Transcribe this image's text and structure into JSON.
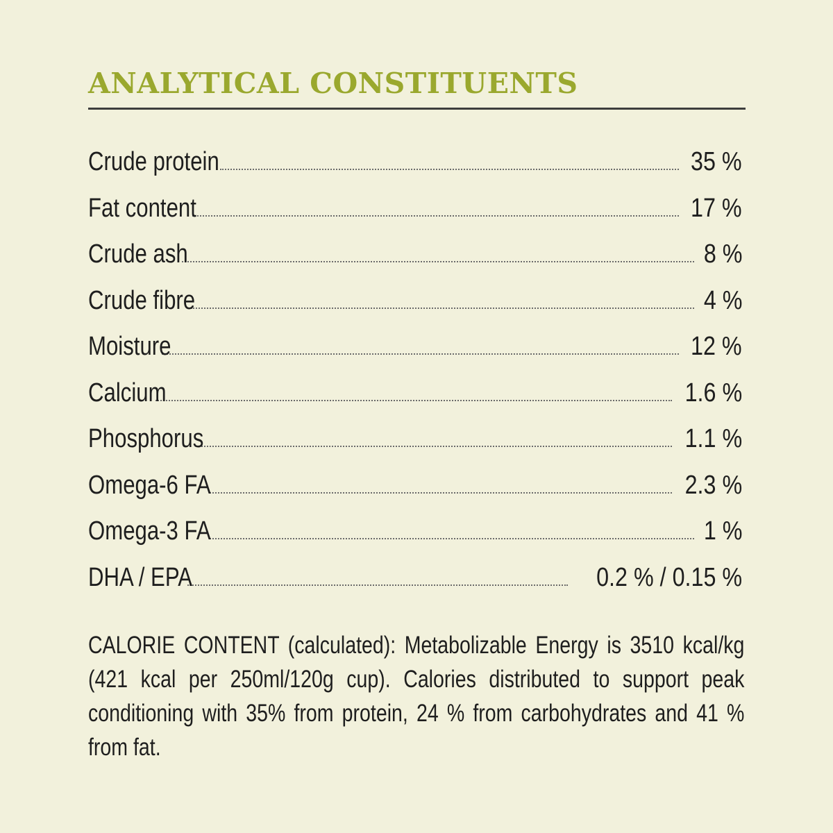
{
  "title": "ANALYTICAL CONSTITUENTS",
  "colors": {
    "title": "#9aa82e",
    "background": "#f2f1dc",
    "text": "#1e1e1e",
    "rule": "#3d3d3d"
  },
  "constituents": [
    {
      "label": "Crude protein",
      "value": "35 %"
    },
    {
      "label": "Fat content",
      "value": "17 %"
    },
    {
      "label": "Crude ash",
      "value": "8 %"
    },
    {
      "label": "Crude fibre",
      "value": "4 %"
    },
    {
      "label": "Moisture",
      "value": "12 %"
    },
    {
      "label": "Calcium",
      "value": "1.6 %"
    },
    {
      "label": "Phosphorus",
      "value": "1.1 %"
    },
    {
      "label": "Omega-6 FA",
      "value": "2.3 %"
    },
    {
      "label": "Omega-3 FA",
      "value": "1 %"
    },
    {
      "label": "DHA / EPA",
      "value": "0.2 % / 0.15 %"
    }
  ],
  "calorie_content": "CALORIE CONTENT (calculated): Metabolizable Energy is 3510 kcal/kg (421 kcal per 250ml/120g cup). Calories distributed to support peak conditioning with 35% from protein, 24 % from carbohydrates and 41 % from fat."
}
